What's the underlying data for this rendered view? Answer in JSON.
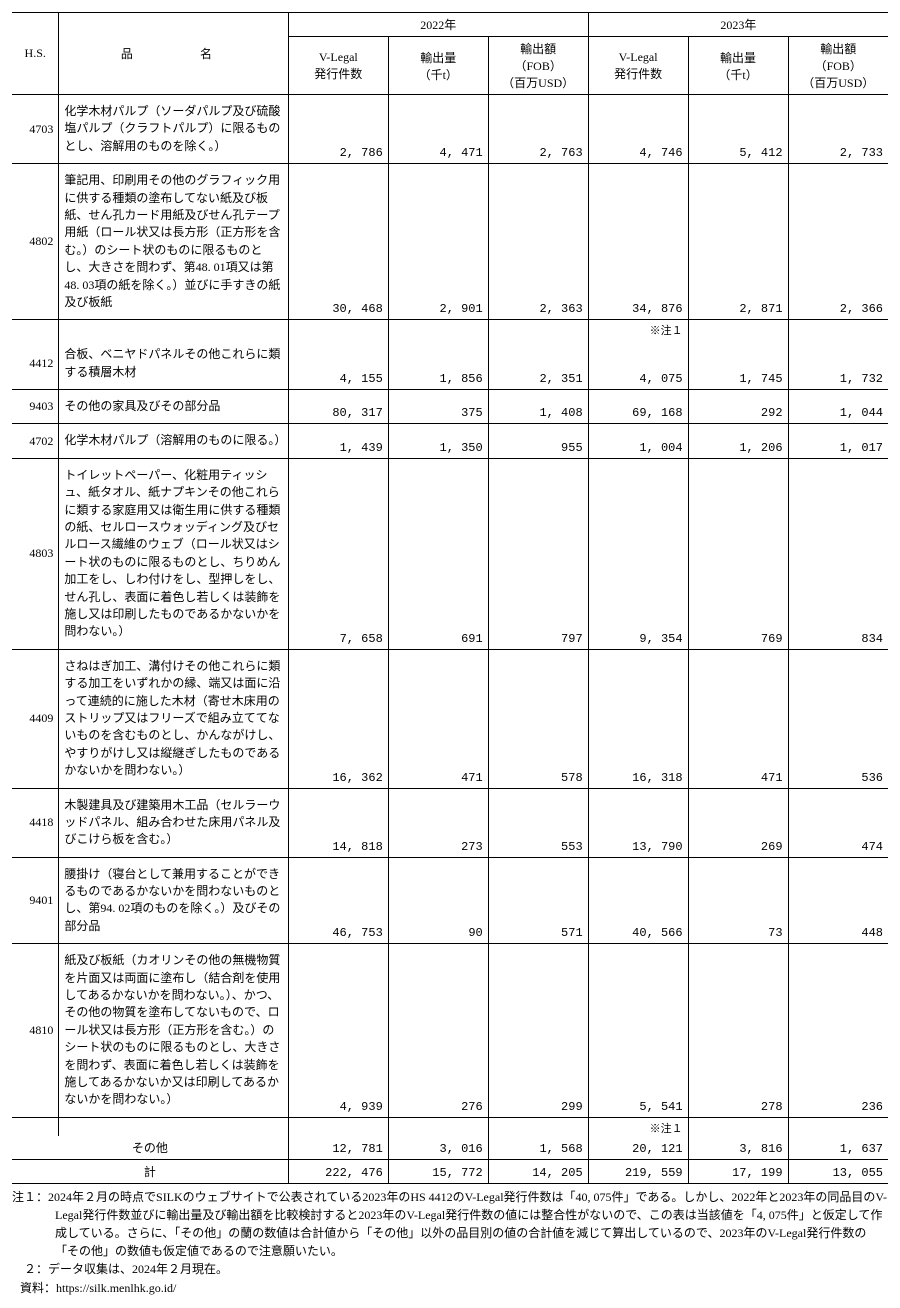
{
  "header": {
    "hs": "H.S.",
    "name": "品　　名",
    "year2022": "2022年",
    "year2023": "2023年",
    "vlegal": "V-Legal\n発行件数",
    "exportvol": "輸出量\n（千t）",
    "exportval": "輸出額\n（FOB）\n（百万USD）"
  },
  "note_mark": "※注１",
  "rows": [
    {
      "hs": "4703",
      "name": "化学木材パルプ（ソーダパルプ及び硫酸塩パルプ（クラフトパルプ）に限るものとし、溶解用のものを除く。）",
      "v": [
        "2, 786",
        "4, 471",
        "2, 763",
        "4, 746",
        "5, 412",
        "2, 733"
      ]
    },
    {
      "hs": "4802",
      "name": "筆記用、印刷用その他のグラフィック用に供する種類の塗布してない紙及び板紙、せん孔カード用紙及びせん孔テープ用紙（ロール状又は長方形（正方形を含む。）のシート状のものに限るものとし、大きさを問わず、第48. 01項又は第48. 03項の紙を除く。）並びに手すきの紙及び板紙",
      "v": [
        "30, 468",
        "2, 901",
        "2, 363",
        "34, 876",
        "2, 871",
        "2, 366"
      ]
    },
    {
      "hs": "4412",
      "name": "合板、ベニヤドパネルその他これらに類する積層木材",
      "v": [
        "4, 155",
        "1, 856",
        "2, 351",
        "4, 075",
        "1, 745",
        "1, 732"
      ],
      "note_before_col": 3
    },
    {
      "hs": "9403",
      "name": "その他の家具及びその部分品",
      "v": [
        "80, 317",
        "375",
        "1, 408",
        "69, 168",
        "292",
        "1, 044"
      ]
    },
    {
      "hs": "4702",
      "name": "化学木材パルプ（溶解用のものに限る。）",
      "v": [
        "1, 439",
        "1, 350",
        "955",
        "1, 004",
        "1, 206",
        "1, 017"
      ]
    },
    {
      "hs": "4803",
      "name": "トイレットペーパー、化粧用ティッシュ、紙タオル、紙ナプキンその他これらに類する家庭用又は衛生用に供する種類の紙、セルロースウォッディング及びセルロース繊維のウェブ（ロール状又はシート状のものに限るものとし、ちりめん加工をし、しわ付けをし、型押しをし、せん孔し、表面に着色し若しくは装飾を施し又は印刷したものであるかないかを問わない。）",
      "v": [
        "7, 658",
        "691",
        "797",
        "9, 354",
        "769",
        "834"
      ]
    },
    {
      "hs": "4409",
      "name": "さねはぎ加工、溝付けその他これらに類する加工をいずれかの縁、端又は面に沿って連続的に施した木材（寄せ木床用のストリップ又はフリーズで組み立ててないものを含むものとし、かんながけし、やすりがけし又は縦継ぎしたものであるかないかを問わない。）",
      "v": [
        "16, 362",
        "471",
        "578",
        "16, 318",
        "471",
        "536"
      ]
    },
    {
      "hs": "4418",
      "name": "木製建具及び建築用木工品（セルラーウッドパネル、組み合わせた床用パネル及びこけら板を含む。）",
      "v": [
        "14, 818",
        "273",
        "553",
        "13, 790",
        "269",
        "474"
      ]
    },
    {
      "hs": "9401",
      "name": "腰掛け（寝台として兼用することができるものであるかないかを問わないものとし、第94. 02項のものを除く。）及びその部分品",
      "v": [
        "46, 753",
        "90",
        "571",
        "40, 566",
        "73",
        "448"
      ]
    },
    {
      "hs": "4810",
      "name": "紙及び板紙（カオリンその他の無機物質を片面又は両面に塗布し（結合剤を使用してあるかないかを問わない。）、かつ、その他の物質を塗布してないもので、ロール状又は長方形（正方形を含む。）のシート状のものに限るものとし、大きさを問わず、表面に着色し若しくは装飾を施してあるかないか又は印刷してあるかないかを問わない。）",
      "v": [
        "4, 939",
        "276",
        "299",
        "5, 541",
        "278",
        "236"
      ]
    }
  ],
  "other": {
    "label": "その他",
    "v": [
      "12, 781",
      "3, 016",
      "1, 568",
      "20, 121",
      "3, 816",
      "1, 637"
    ],
    "note_before_col": 3
  },
  "total": {
    "label": "計",
    "v": [
      "222, 476",
      "15, 772",
      "14, 205",
      "219, 559",
      "17, 199",
      "13, 055"
    ]
  },
  "footnotes": {
    "n1_label": "注１：",
    "n1": "2024年２月の時点でSILKのウェブサイトで公表されている2023年のHS 4412のV-Legal発行件数は「40, 075件」である。しかし、2022年と2023年の同品目のV-Legal発行件数並びに輸出量及び輸出額を比較検討すると2023年のV-Legal発行件数の値には整合性がないので、この表は当該値を「4, 075件」と仮定して作成している。さらに、「その他」の蘭の数値は合計値から「その他」以外の品目別の値の合計値を減じて算出しているので、2023年のV-Legal発行件数の「その他」の数値も仮定値であるので注意願いたい。",
    "n2_label": "２：",
    "n2": "データ収集は、2024年２月現在。",
    "source_label": "資料：",
    "source": "https://silk.menlhk.go.id/"
  }
}
